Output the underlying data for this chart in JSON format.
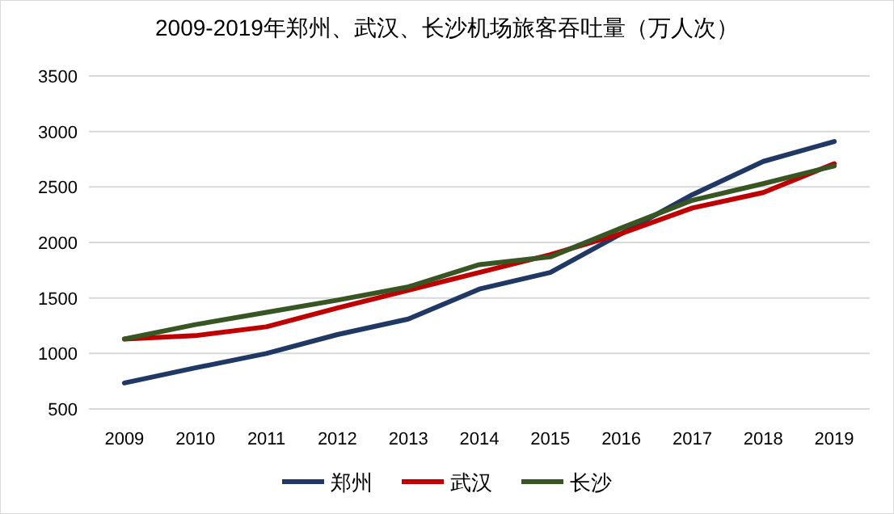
{
  "chart_data": {
    "type": "line",
    "title": "2009-2019年郑州、武汉、长沙机场旅客吞吐量（万人次）",
    "categories": [
      "2009",
      "2010",
      "2011",
      "2012",
      "2013",
      "2014",
      "2015",
      "2016",
      "2017",
      "2018",
      "2019"
    ],
    "series": [
      {
        "name": "郑州",
        "color": "#203864",
        "values": [
          734,
          870,
          1000,
          1170,
          1310,
          1580,
          1730,
          2080,
          2430,
          2730,
          2910
        ]
      },
      {
        "name": "武汉",
        "color": "#c00000",
        "values": [
          1130,
          1160,
          1240,
          1410,
          1570,
          1730,
          1890,
          2080,
          2310,
          2450,
          2710
        ]
      },
      {
        "name": "长沙",
        "color": "#375623",
        "values": [
          1130,
          1260,
          1370,
          1480,
          1600,
          1800,
          1870,
          2130,
          2380,
          2530,
          2690
        ]
      }
    ],
    "ylim": [
      500,
      3500
    ],
    "yticks": [
      500,
      1000,
      1500,
      2000,
      2500,
      3000,
      3500
    ],
    "grid": "y",
    "legend": "bottom",
    "marker": "none",
    "line_style": "solid"
  }
}
